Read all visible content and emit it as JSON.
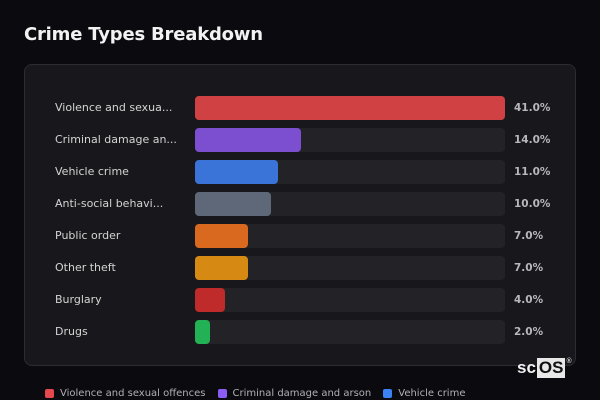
{
  "title": "Crime Types Breakdown",
  "chart_data": {
    "type": "bar",
    "orientation": "horizontal",
    "title": "Crime Types Breakdown",
    "categories": [
      "Violence and sexual offences",
      "Criminal damage and arson",
      "Vehicle crime",
      "Anti-social behaviour",
      "Public order",
      "Other theft",
      "Burglary",
      "Drugs"
    ],
    "display_labels": [
      "Violence and sexua...",
      "Criminal damage an...",
      "Vehicle crime",
      "Anti-social behavi...",
      "Public order",
      "Other theft",
      "Burglary",
      "Drugs"
    ],
    "values": [
      41.0,
      14.0,
      11.0,
      10.0,
      7.0,
      7.0,
      4.0,
      2.0
    ],
    "value_labels": [
      "41.0%",
      "14.0%",
      "11.0%",
      "10.0%",
      "7.0%",
      "7.0%",
      "4.0%",
      "2.0%"
    ],
    "colors": [
      "#d04144",
      "#7b4fd0",
      "#3a74d8",
      "#5f6878",
      "#d9691f",
      "#d68a14",
      "#bf2b2b",
      "#22b155"
    ],
    "xlabel": "",
    "ylabel": "",
    "xlim": [
      0,
      41
    ],
    "grid": false,
    "legend_position": "bottom"
  },
  "legend": [
    {
      "label": "Violence and sexual offences",
      "color": "#e5484d"
    },
    {
      "label": "Criminal damage and arson",
      "color": "#8b5cf6"
    },
    {
      "label": "Vehicle crime",
      "color": "#3b82f6"
    }
  ],
  "watermark": {
    "prefix": "sc",
    "boxed": "OS",
    "mark": "®"
  }
}
